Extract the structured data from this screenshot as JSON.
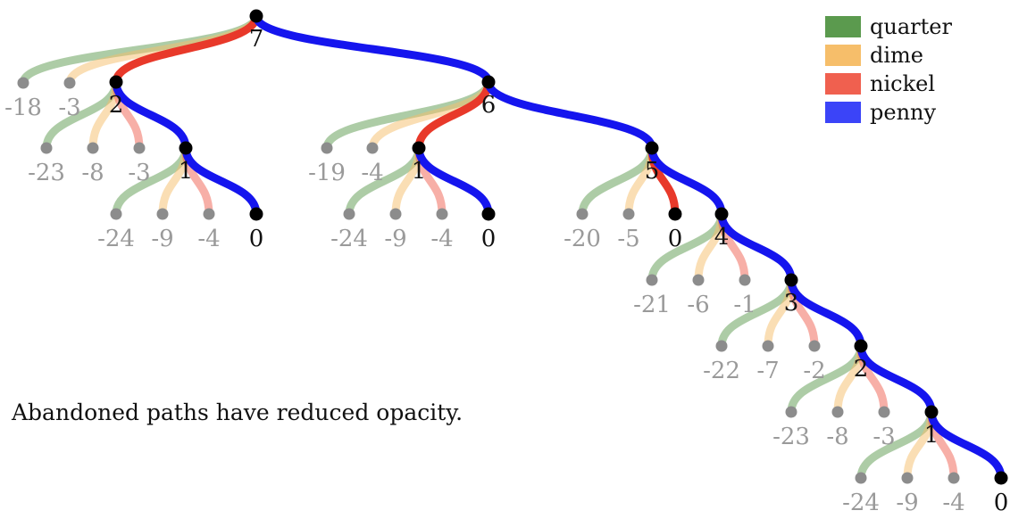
{
  "caption": "Abandoned paths have reduced opacity.",
  "colors": {
    "quarter": "#5b9a4e",
    "dime": "#f6be6a",
    "nickel": "#f0604f",
    "penny": "#3b44f8",
    "active_edge_nickel": "#e8392a",
    "active_edge_penny": "#1515ee",
    "node_active": "#000000",
    "node_abandoned": "#8c8c8c",
    "label_active": "#111111",
    "label_abandoned": "#9a9a9a"
  },
  "legend": [
    {
      "coin": "quarter",
      "label": "quarter"
    },
    {
      "coin": "dime",
      "label": "dime"
    },
    {
      "coin": "nickel",
      "label": "nickel"
    },
    {
      "coin": "penny",
      "label": "penny"
    }
  ],
  "tree": {
    "nodes": [
      {
        "id": "n7",
        "label": "7",
        "active": true
      },
      {
        "id": "a-18",
        "label": "-18",
        "active": false
      },
      {
        "id": "a-3",
        "label": "-3",
        "active": false
      },
      {
        "id": "n2a",
        "label": "2",
        "active": true
      },
      {
        "id": "n6",
        "label": "6",
        "active": true
      },
      {
        "id": "a-23",
        "label": "-23",
        "active": false
      },
      {
        "id": "a-8",
        "label": "-8",
        "active": false
      },
      {
        "id": "a-3b",
        "label": "-3",
        "active": false
      },
      {
        "id": "n1a",
        "label": "1",
        "active": true
      },
      {
        "id": "a-24a",
        "label": "-24",
        "active": false
      },
      {
        "id": "a-9a",
        "label": "-9",
        "active": false
      },
      {
        "id": "a-4a",
        "label": "-4",
        "active": false
      },
      {
        "id": "n0a",
        "label": "0",
        "active": true
      },
      {
        "id": "a-19",
        "label": "-19",
        "active": false
      },
      {
        "id": "a-4b",
        "label": "-4",
        "active": false
      },
      {
        "id": "n1b",
        "label": "1",
        "active": true
      },
      {
        "id": "n5",
        "label": "5",
        "active": true
      },
      {
        "id": "a-24b",
        "label": "-24",
        "active": false
      },
      {
        "id": "a-9b",
        "label": "-9",
        "active": false
      },
      {
        "id": "a-4c",
        "label": "-4",
        "active": false
      },
      {
        "id": "n0b",
        "label": "0",
        "active": true
      },
      {
        "id": "a-20",
        "label": "-20",
        "active": false
      },
      {
        "id": "a-5",
        "label": "-5",
        "active": false
      },
      {
        "id": "n0c",
        "label": "0",
        "active": true
      },
      {
        "id": "n4",
        "label": "4",
        "active": true
      },
      {
        "id": "a-21",
        "label": "-21",
        "active": false
      },
      {
        "id": "a-6",
        "label": "-6",
        "active": false
      },
      {
        "id": "a-1",
        "label": "-1",
        "active": false
      },
      {
        "id": "n3",
        "label": "3",
        "active": true
      },
      {
        "id": "a-22",
        "label": "-22",
        "active": false
      },
      {
        "id": "a-7",
        "label": "-7",
        "active": false
      },
      {
        "id": "a-2",
        "label": "-2",
        "active": false
      },
      {
        "id": "n2b",
        "label": "2",
        "active": true
      },
      {
        "id": "a-23b",
        "label": "-23",
        "active": false
      },
      {
        "id": "a-8b",
        "label": "-8",
        "active": false
      },
      {
        "id": "a-3c",
        "label": "-3",
        "active": false
      },
      {
        "id": "n1c",
        "label": "1",
        "active": true
      },
      {
        "id": "a-24c",
        "label": "-24",
        "active": false
      },
      {
        "id": "a-9c",
        "label": "-9",
        "active": false
      },
      {
        "id": "a-4d",
        "label": "-4",
        "active": false
      },
      {
        "id": "n0d",
        "label": "0",
        "active": true
      }
    ],
    "edges": [
      {
        "from": "n7",
        "to": "a-18",
        "coin": "quarter",
        "active": false
      },
      {
        "from": "n7",
        "to": "a-3",
        "coin": "dime",
        "active": false
      },
      {
        "from": "n7",
        "to": "n2a",
        "coin": "nickel",
        "active": true
      },
      {
        "from": "n7",
        "to": "n6",
        "coin": "penny",
        "active": true
      },
      {
        "from": "n2a",
        "to": "a-23",
        "coin": "quarter",
        "active": false
      },
      {
        "from": "n2a",
        "to": "a-8",
        "coin": "dime",
        "active": false
      },
      {
        "from": "n2a",
        "to": "a-3b",
        "coin": "nickel",
        "active": false
      },
      {
        "from": "n2a",
        "to": "n1a",
        "coin": "penny",
        "active": true
      },
      {
        "from": "n1a",
        "to": "a-24a",
        "coin": "quarter",
        "active": false
      },
      {
        "from": "n1a",
        "to": "a-9a",
        "coin": "dime",
        "active": false
      },
      {
        "from": "n1a",
        "to": "a-4a",
        "coin": "nickel",
        "active": false
      },
      {
        "from": "n1a",
        "to": "n0a",
        "coin": "penny",
        "active": true
      },
      {
        "from": "n6",
        "to": "a-19",
        "coin": "quarter",
        "active": false
      },
      {
        "from": "n6",
        "to": "a-4b",
        "coin": "dime",
        "active": false
      },
      {
        "from": "n6",
        "to": "n1b",
        "coin": "nickel",
        "active": true
      },
      {
        "from": "n6",
        "to": "n5",
        "coin": "penny",
        "active": true
      },
      {
        "from": "n1b",
        "to": "a-24b",
        "coin": "quarter",
        "active": false
      },
      {
        "from": "n1b",
        "to": "a-9b",
        "coin": "dime",
        "active": false
      },
      {
        "from": "n1b",
        "to": "a-4c",
        "coin": "nickel",
        "active": false
      },
      {
        "from": "n1b",
        "to": "n0b",
        "coin": "penny",
        "active": true
      },
      {
        "from": "n5",
        "to": "a-20",
        "coin": "quarter",
        "active": false
      },
      {
        "from": "n5",
        "to": "a-5",
        "coin": "dime",
        "active": false
      },
      {
        "from": "n5",
        "to": "n0c",
        "coin": "nickel",
        "active": true
      },
      {
        "from": "n5",
        "to": "n4",
        "coin": "penny",
        "active": true
      },
      {
        "from": "n4",
        "to": "a-21",
        "coin": "quarter",
        "active": false
      },
      {
        "from": "n4",
        "to": "a-6",
        "coin": "dime",
        "active": false
      },
      {
        "from": "n4",
        "to": "a-1",
        "coin": "nickel",
        "active": false
      },
      {
        "from": "n4",
        "to": "n3",
        "coin": "penny",
        "active": true
      },
      {
        "from": "n3",
        "to": "a-22",
        "coin": "quarter",
        "active": false
      },
      {
        "from": "n3",
        "to": "a-7",
        "coin": "dime",
        "active": false
      },
      {
        "from": "n3",
        "to": "a-2",
        "coin": "nickel",
        "active": false
      },
      {
        "from": "n3",
        "to": "n2b",
        "coin": "penny",
        "active": true
      },
      {
        "from": "n2b",
        "to": "a-23b",
        "coin": "quarter",
        "active": false
      },
      {
        "from": "n2b",
        "to": "a-8b",
        "coin": "dime",
        "active": false
      },
      {
        "from": "n2b",
        "to": "a-3c",
        "coin": "nickel",
        "active": false
      },
      {
        "from": "n2b",
        "to": "n1c",
        "coin": "penny",
        "active": true
      },
      {
        "from": "n1c",
        "to": "a-24c",
        "coin": "quarter",
        "active": false
      },
      {
        "from": "n1c",
        "to": "a-9c",
        "coin": "dime",
        "active": false
      },
      {
        "from": "n1c",
        "to": "a-4d",
        "coin": "nickel",
        "active": false
      },
      {
        "from": "n1c",
        "to": "n0d",
        "coin": "penny",
        "active": true
      }
    ]
  }
}
